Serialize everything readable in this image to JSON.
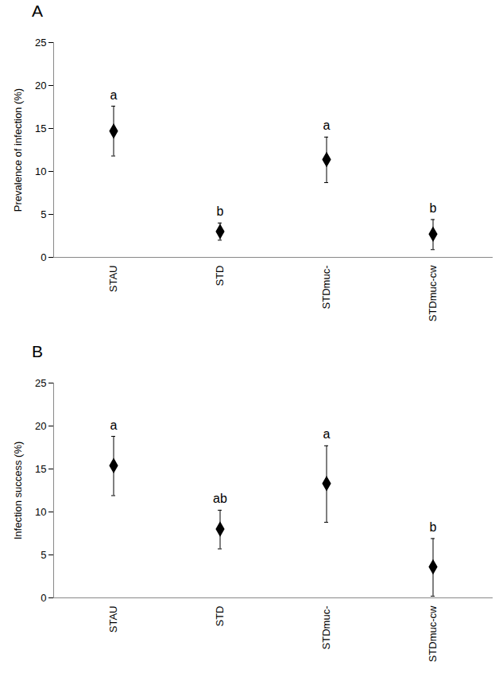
{
  "chart_data": [
    {
      "type": "scatter",
      "title": "A",
      "y_label": "Prevalence of infection (%)",
      "categories": [
        "STAU",
        "STD",
        "STDmuc-",
        "STDmuc-cw"
      ],
      "values": [
        14.7,
        3.0,
        11.4,
        2.7
      ],
      "error_low": [
        11.8,
        2.0,
        8.7,
        0.9
      ],
      "error_high": [
        17.6,
        4.0,
        14.0,
        4.4
      ],
      "annotations": [
        "a",
        "b",
        "a",
        "b"
      ],
      "color": "#000000",
      "marker": "diamond",
      "ylim": [
        0,
        25
      ],
      "yticks": [
        0,
        5,
        10,
        15,
        20,
        25
      ],
      "grid": false
    },
    {
      "type": "scatter",
      "title": "B",
      "y_label": "Infection success (%)",
      "categories": [
        "STAU",
        "STD",
        "STDmuc-",
        "STDmuc-cw"
      ],
      "values": [
        15.4,
        8.0,
        13.3,
        3.6
      ],
      "error_low": [
        11.9,
        5.7,
        8.8,
        0.2
      ],
      "error_high": [
        18.8,
        10.2,
        17.7,
        6.9
      ],
      "annotations": [
        "a",
        "ab",
        "a",
        "b"
      ],
      "color": "#000000",
      "marker": "diamond",
      "ylim": [
        0,
        25
      ],
      "yticks": [
        0,
        5,
        10,
        15,
        20,
        25
      ],
      "grid": false
    }
  ]
}
